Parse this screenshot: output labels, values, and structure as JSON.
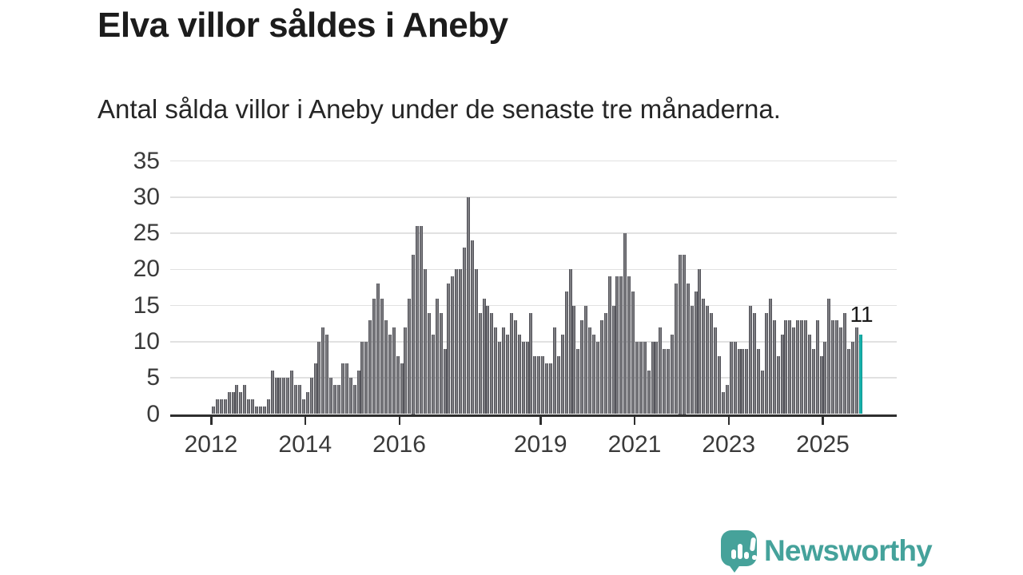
{
  "header": {
    "title": "Elva villor såldes i Aneby",
    "subtitle": "Antal sålda villor i Aneby under de senaste tre månaderna."
  },
  "chart_data": {
    "type": "bar",
    "title": "Elva villor såldes i Aneby",
    "subtitle": "Antal sålda villor i Aneby under de senaste tre månaderna.",
    "unit": "sålda villor (rullande 3 månader)",
    "x_start": "2012-01",
    "x_end": "2025-10",
    "x_freq": "monthly",
    "values": [
      1,
      2,
      2,
      2,
      3,
      3,
      4,
      3,
      4,
      2,
      2,
      1,
      1,
      1,
      2,
      6,
      5,
      5,
      5,
      5,
      6,
      4,
      4,
      2,
      3,
      5,
      7,
      10,
      12,
      11,
      5,
      4,
      4,
      7,
      7,
      5,
      4,
      6,
      10,
      10,
      13,
      16,
      18,
      16,
      13,
      11,
      12,
      8,
      7,
      12,
      16,
      22,
      26,
      26,
      20,
      14,
      11,
      16,
      14,
      9,
      18,
      19,
      20,
      20,
      23,
      30,
      24,
      20,
      14,
      16,
      15,
      14,
      12,
      10,
      12,
      11,
      14,
      13,
      11,
      10,
      10,
      14,
      8,
      8,
      8,
      7,
      7,
      12,
      8,
      11,
      17,
      20,
      15,
      9,
      13,
      15,
      12,
      11,
      10,
      13,
      14,
      19,
      15,
      19,
      19,
      25,
      19,
      17,
      10,
      10,
      10,
      6,
      10,
      10,
      12,
      9,
      9,
      11,
      18,
      22,
      22,
      18,
      15,
      17,
      20,
      16,
      15,
      14,
      12,
      8,
      3,
      4,
      10,
      10,
      9,
      9,
      9,
      15,
      14,
      9,
      6,
      14,
      16,
      13,
      8,
      11,
      13,
      13,
      12,
      13,
      13,
      13,
      11,
      9,
      13,
      8,
      10,
      16,
      13,
      13,
      12,
      14,
      9,
      10,
      12,
      11
    ],
    "ylim": [
      0,
      35
    ],
    "yticks": [
      0,
      5,
      10,
      15,
      20,
      25,
      30,
      35
    ],
    "xticks": [
      2012,
      2014,
      2016,
      2019,
      2021,
      2023,
      2025
    ],
    "grid": "horizontal",
    "legend": "none",
    "highlight": {
      "index": 165,
      "value": 11,
      "label": "11"
    },
    "colors": {
      "bar_fill": "#7d7d81",
      "bar_border": "#53535a",
      "highlight_fill": "#17b2ac",
      "highlight_border": "#0e948f",
      "gridline": "#e1e1e1",
      "axis": "#2e2e2e",
      "tick_text": "#3a3a3a"
    }
  },
  "footer": {
    "brand": "Newsworthy",
    "logo_icon": "speech-bubble-bar-chart-exclamation",
    "brand_color": "#45a29b"
  }
}
